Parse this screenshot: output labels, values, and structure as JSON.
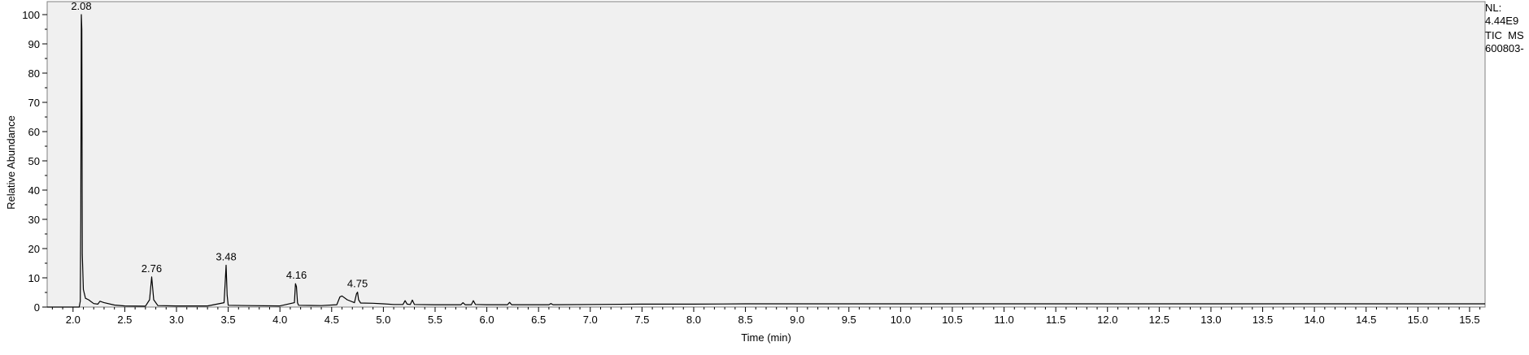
{
  "side_info": {
    "nl_label": "NL:",
    "nl_value": "4.44E9",
    "trace": "TIC  MS",
    "file": "600803-"
  },
  "chart_data": {
    "type": "line",
    "title": "",
    "xlabel": "Time (min)",
    "ylabel": "Relative Abundance",
    "xlim": [
      1.75,
      15.65
    ],
    "ylim": [
      0,
      100
    ],
    "x_ticks": [
      "2.0",
      "2.5",
      "3.0",
      "3.5",
      "4.0",
      "4.5",
      "5.0",
      "5.5",
      "6.0",
      "6.5",
      "7.0",
      "7.5",
      "8.0",
      "8.5",
      "9.0",
      "9.5",
      "10.0",
      "10.5",
      "11.0",
      "11.5",
      "12.0",
      "12.5",
      "13.0",
      "13.5",
      "14.0",
      "14.5",
      "15.0",
      "15.5"
    ],
    "y_ticks": [
      "0",
      "10",
      "20",
      "30",
      "40",
      "50",
      "60",
      "70",
      "80",
      "90",
      "100"
    ],
    "grid": false,
    "series": [
      {
        "x": [
          1.75,
          2.0,
          2.06,
          2.07,
          2.075,
          2.08,
          2.085,
          2.09,
          2.1,
          2.12,
          2.15,
          2.2,
          2.24,
          2.26,
          2.3,
          2.4,
          2.5,
          2.7,
          2.74,
          2.76,
          2.78,
          2.82,
          3.0,
          3.3,
          3.46,
          3.47,
          3.48,
          3.49,
          3.5,
          3.7,
          4.0,
          4.14,
          4.15,
          4.16,
          4.17,
          4.18,
          4.4,
          4.55,
          4.58,
          4.6,
          4.65,
          4.72,
          4.74,
          4.75,
          4.76,
          4.78,
          4.9,
          5.0,
          5.1,
          5.19,
          5.21,
          5.23,
          5.26,
          5.28,
          5.3,
          5.5,
          5.75,
          5.77,
          5.79,
          5.85,
          5.87,
          5.89,
          6.0,
          6.2,
          6.22,
          6.24,
          6.5,
          6.6,
          6.62,
          6.64,
          7.0,
          7.5,
          8.0,
          8.5,
          9.0,
          10.0,
          11.0,
          12.0,
          13.0,
          14.0,
          15.0,
          15.65
        ],
        "y": [
          0,
          0,
          0,
          2,
          30,
          100,
          95,
          18,
          6,
          3,
          2.5,
          1.2,
          1.0,
          2.0,
          1.5,
          0.7,
          0.4,
          0.3,
          2.5,
          10.3,
          2.5,
          0.5,
          0.4,
          0.4,
          1.5,
          8,
          14.3,
          4,
          0.6,
          0.5,
          0.4,
          1.5,
          8,
          7,
          1.5,
          0.6,
          0.5,
          0.8,
          3.5,
          3.8,
          2.5,
          1.5,
          4.5,
          5.1,
          2.5,
          1.4,
          1.3,
          1.1,
          0.9,
          0.9,
          2.2,
          1.0,
          0.9,
          2.4,
          0.9,
          0.8,
          0.8,
          1.5,
          0.8,
          0.8,
          2.2,
          0.9,
          0.8,
          0.8,
          1.6,
          0.8,
          0.8,
          0.8,
          1.2,
          0.8,
          0.9,
          1.0,
          1.0,
          1.1,
          1.1,
          1.1,
          1.1,
          1.1,
          1.1,
          1.1,
          1.1,
          1.1
        ]
      }
    ],
    "annotations": [
      {
        "x": 2.08,
        "y": 100,
        "label": "2.08"
      },
      {
        "x": 2.76,
        "y": 10.3,
        "label": "2.76"
      },
      {
        "x": 3.48,
        "y": 14.3,
        "label": "3.48"
      },
      {
        "x": 4.16,
        "y": 8,
        "label": "4.16"
      },
      {
        "x": 4.75,
        "y": 5.1,
        "label": "4.75"
      }
    ]
  }
}
